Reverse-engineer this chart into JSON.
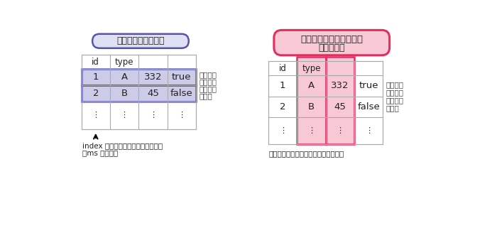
{
  "left_title": "行指向データベース",
  "right_title_line1": "カラムナーデータベース",
  "right_title_line2": "（列指向）",
  "left_caption_line1": "index を使うことで行の検索が早い",
  "left_caption_line2": "（ms レベル）",
  "right_caption": "列ごとの集計が高速で圧縮効率が良い",
  "right_annotation_lines": [
    "列ごとに",
    "データが",
    "格納され",
    "ている"
  ],
  "left_annotation_lines": [
    "行ごとに",
    "データが",
    "格納され",
    "ている"
  ],
  "table_headers": [
    "id",
    "type",
    "",
    ""
  ],
  "table_row1": [
    "1",
    "A",
    "332",
    "true"
  ],
  "table_row2": [
    "2",
    "B",
    "45",
    "false"
  ],
  "table_dots": [
    "⋮",
    "⋮",
    "⋮",
    "⋮"
  ],
  "left_title_bg": "#e0e0f4",
  "left_title_border": "#5555aa",
  "right_title_bg": "#f8c8d4",
  "right_title_border": "#e03060",
  "row_highlight_color": "#cccce8",
  "col_highlight_color": "#f8c8d4",
  "table_line_color": "#aaaaaa",
  "bg_color": "#ffffff",
  "text_color": "#222222",
  "annotation_color": "#444444"
}
